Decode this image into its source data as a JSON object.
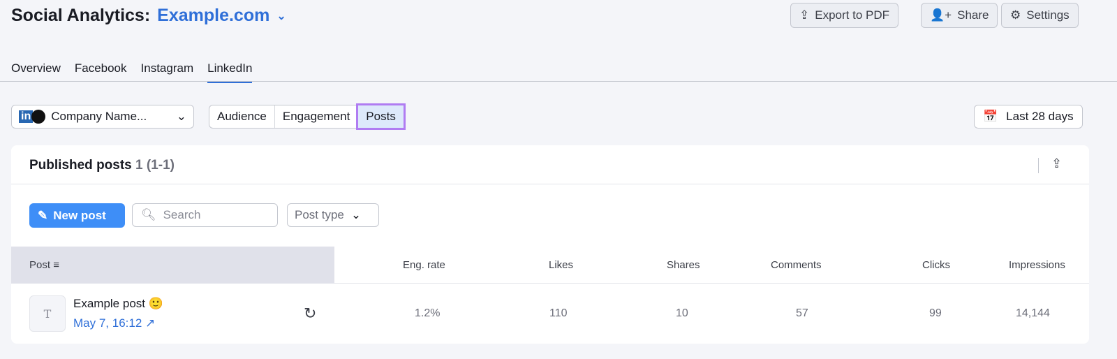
{
  "header": {
    "title": "Social Analytics:",
    "domain": "Example.com",
    "export_label": "Export to PDF",
    "share_label": "Share",
    "settings_label": "Settings"
  },
  "tabs": [
    {
      "label": "Overview"
    },
    {
      "label": "Facebook"
    },
    {
      "label": "Instagram"
    },
    {
      "label": "LinkedIn",
      "active": true
    }
  ],
  "profile": {
    "name": "Company Name..."
  },
  "sections": [
    {
      "label": "Audience"
    },
    {
      "label": "Engagement"
    },
    {
      "label": "Posts",
      "active": true
    }
  ],
  "date_range": "Last 28 days",
  "card": {
    "title": "Published posts",
    "count": "1",
    "range": "(1-1)",
    "new_post_label": "New post",
    "search_placeholder": "Search",
    "post_type_label": "Post type"
  },
  "table": {
    "columns": [
      "Post",
      "Eng. rate",
      "Likes",
      "Shares",
      "Comments",
      "Clicks",
      "Impressions"
    ],
    "rows": [
      {
        "title": "Example post 🙂",
        "date": "May 7, 16:12",
        "eng_rate": "1.2%",
        "likes": "110",
        "shares": "10",
        "comments": "57",
        "clicks": "99",
        "impressions": "14,144"
      }
    ]
  },
  "colors": {
    "accent": "#2f6fd8",
    "button": "#3e8ef7",
    "highlight": "#b07cf2"
  }
}
